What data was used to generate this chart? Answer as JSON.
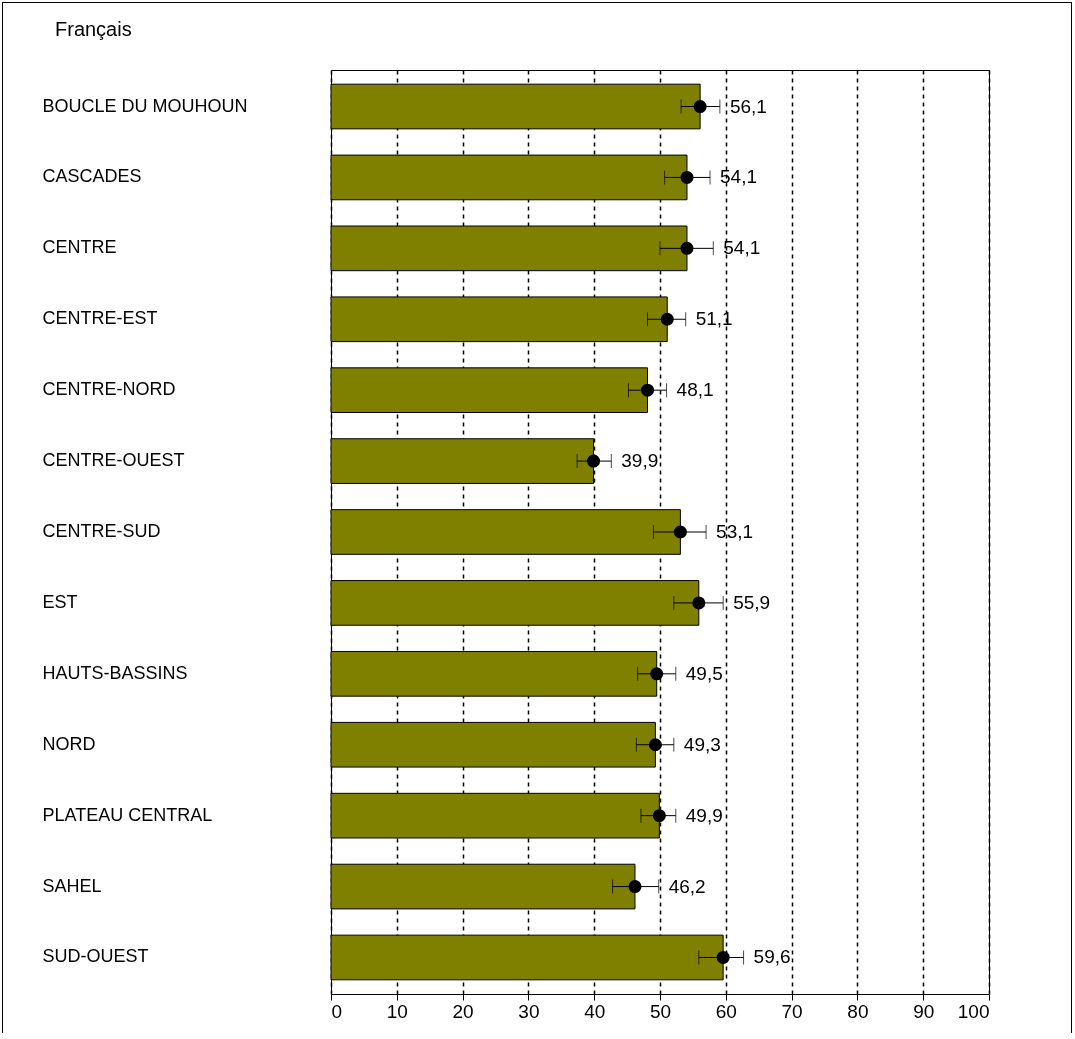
{
  "chart_data": {
    "type": "bar",
    "orientation": "horizontal",
    "title": "Français",
    "categories": [
      "BOUCLE DU MOUHOUN",
      "CASCADES",
      "CENTRE",
      "CENTRE-EST",
      "CENTRE-NORD",
      "CENTRE-OUEST",
      "CENTRE-SUD",
      "EST",
      "HAUTS-BASSINS",
      "NORD",
      "PLATEAU CENTRAL",
      "SAHEL",
      "SUD-OUEST"
    ],
    "series": [
      {
        "color": "#808000",
        "values": [
          56.1,
          54.1,
          54.1,
          51.1,
          48.1,
          39.9,
          53.1,
          55.9,
          49.5,
          49.3,
          49.9,
          46.2,
          59.6
        ]
      },
      {
        "type": "scatter",
        "color": "#000000",
        "values": [
          56.1,
          54.1,
          54.1,
          51.1,
          48.1,
          39.9,
          53.1,
          55.9,
          49.5,
          49.3,
          49.9,
          46.2,
          59.6
        ],
        "errors": [
          [
            53.2,
            59.1
          ],
          [
            50.7,
            57.6
          ],
          [
            50.0,
            58.1
          ],
          [
            48.1,
            53.9
          ],
          [
            45.2,
            51.0
          ],
          [
            37.4,
            42.6
          ],
          [
            49.0,
            57.0
          ],
          [
            52.1,
            59.6
          ],
          [
            46.6,
            52.4
          ],
          [
            46.4,
            52.1
          ],
          [
            47.1,
            52.4
          ],
          [
            42.8,
            49.8
          ],
          [
            55.9,
            62.7
          ]
        ],
        "value_labels": [
          "56,1",
          "54,1",
          "54,1",
          "51,1",
          "48,1",
          "39,9",
          "53,1",
          "55,9",
          "49,5",
          "49,3",
          "49,9",
          "46,2",
          "59,6"
        ]
      }
    ],
    "marker": "circle",
    "xlim": [
      0,
      100
    ],
    "xticks": [
      0,
      10,
      20,
      30,
      40,
      50,
      60,
      70,
      80,
      90,
      100
    ],
    "grid": "x"
  }
}
